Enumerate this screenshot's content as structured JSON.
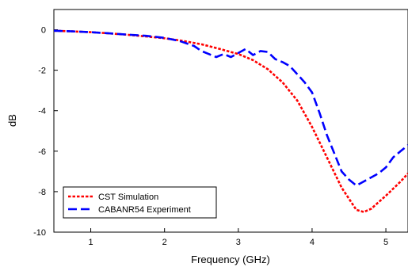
{
  "chart_data": {
    "type": "line",
    "title": "",
    "xlabel": "Frequency (GHz)",
    "ylabel": "dB",
    "xlim": [
      0.5,
      5.3
    ],
    "ylim": [
      -10,
      1
    ],
    "xticks": [
      1,
      2,
      3,
      4,
      5
    ],
    "yticks": [
      0,
      -2,
      -4,
      -6,
      -8,
      -10
    ],
    "grid": false,
    "legend_position": "bottom-left",
    "series": [
      {
        "name": "CST Simulation",
        "color": "#ff0000",
        "style": "dotted",
        "x": [
          0.5,
          0.75,
          1.0,
          1.25,
          1.5,
          1.75,
          2.0,
          2.25,
          2.5,
          2.75,
          3.0,
          3.2,
          3.4,
          3.6,
          3.8,
          4.0,
          4.2,
          4.4,
          4.6,
          4.7,
          4.8,
          5.0,
          5.2,
          5.3
        ],
        "y": [
          -0.05,
          -0.08,
          -0.12,
          -0.18,
          -0.25,
          -0.33,
          -0.42,
          -0.55,
          -0.72,
          -0.95,
          -1.2,
          -1.5,
          -1.95,
          -2.6,
          -3.5,
          -4.8,
          -6.3,
          -7.8,
          -8.9,
          -9.0,
          -8.85,
          -8.2,
          -7.5,
          -7.1
        ]
      },
      {
        "name": "CABANR54 Experiment",
        "color": "#0000ff",
        "style": "dashed",
        "x": [
          0.5,
          0.75,
          1.0,
          1.25,
          1.5,
          1.75,
          2.0,
          2.2,
          2.4,
          2.5,
          2.6,
          2.7,
          2.8,
          2.9,
          3.0,
          3.1,
          3.2,
          3.3,
          3.4,
          3.5,
          3.6,
          3.7,
          3.8,
          3.9,
          4.0,
          4.1,
          4.2,
          4.3,
          4.4,
          4.5,
          4.6,
          4.7,
          4.8,
          4.9,
          5.0,
          5.1,
          5.2,
          5.3
        ],
        "y": [
          -0.05,
          -0.08,
          -0.12,
          -0.18,
          -0.24,
          -0.3,
          -0.4,
          -0.55,
          -0.8,
          -1.05,
          -1.2,
          -1.35,
          -1.2,
          -1.35,
          -1.15,
          -0.95,
          -1.25,
          -1.05,
          -1.1,
          -1.45,
          -1.6,
          -1.8,
          -2.2,
          -2.6,
          -3.1,
          -4.1,
          -5.2,
          -6.1,
          -7.0,
          -7.4,
          -7.7,
          -7.5,
          -7.3,
          -7.1,
          -6.8,
          -6.3,
          -6.0,
          -5.7
        ]
      }
    ]
  }
}
